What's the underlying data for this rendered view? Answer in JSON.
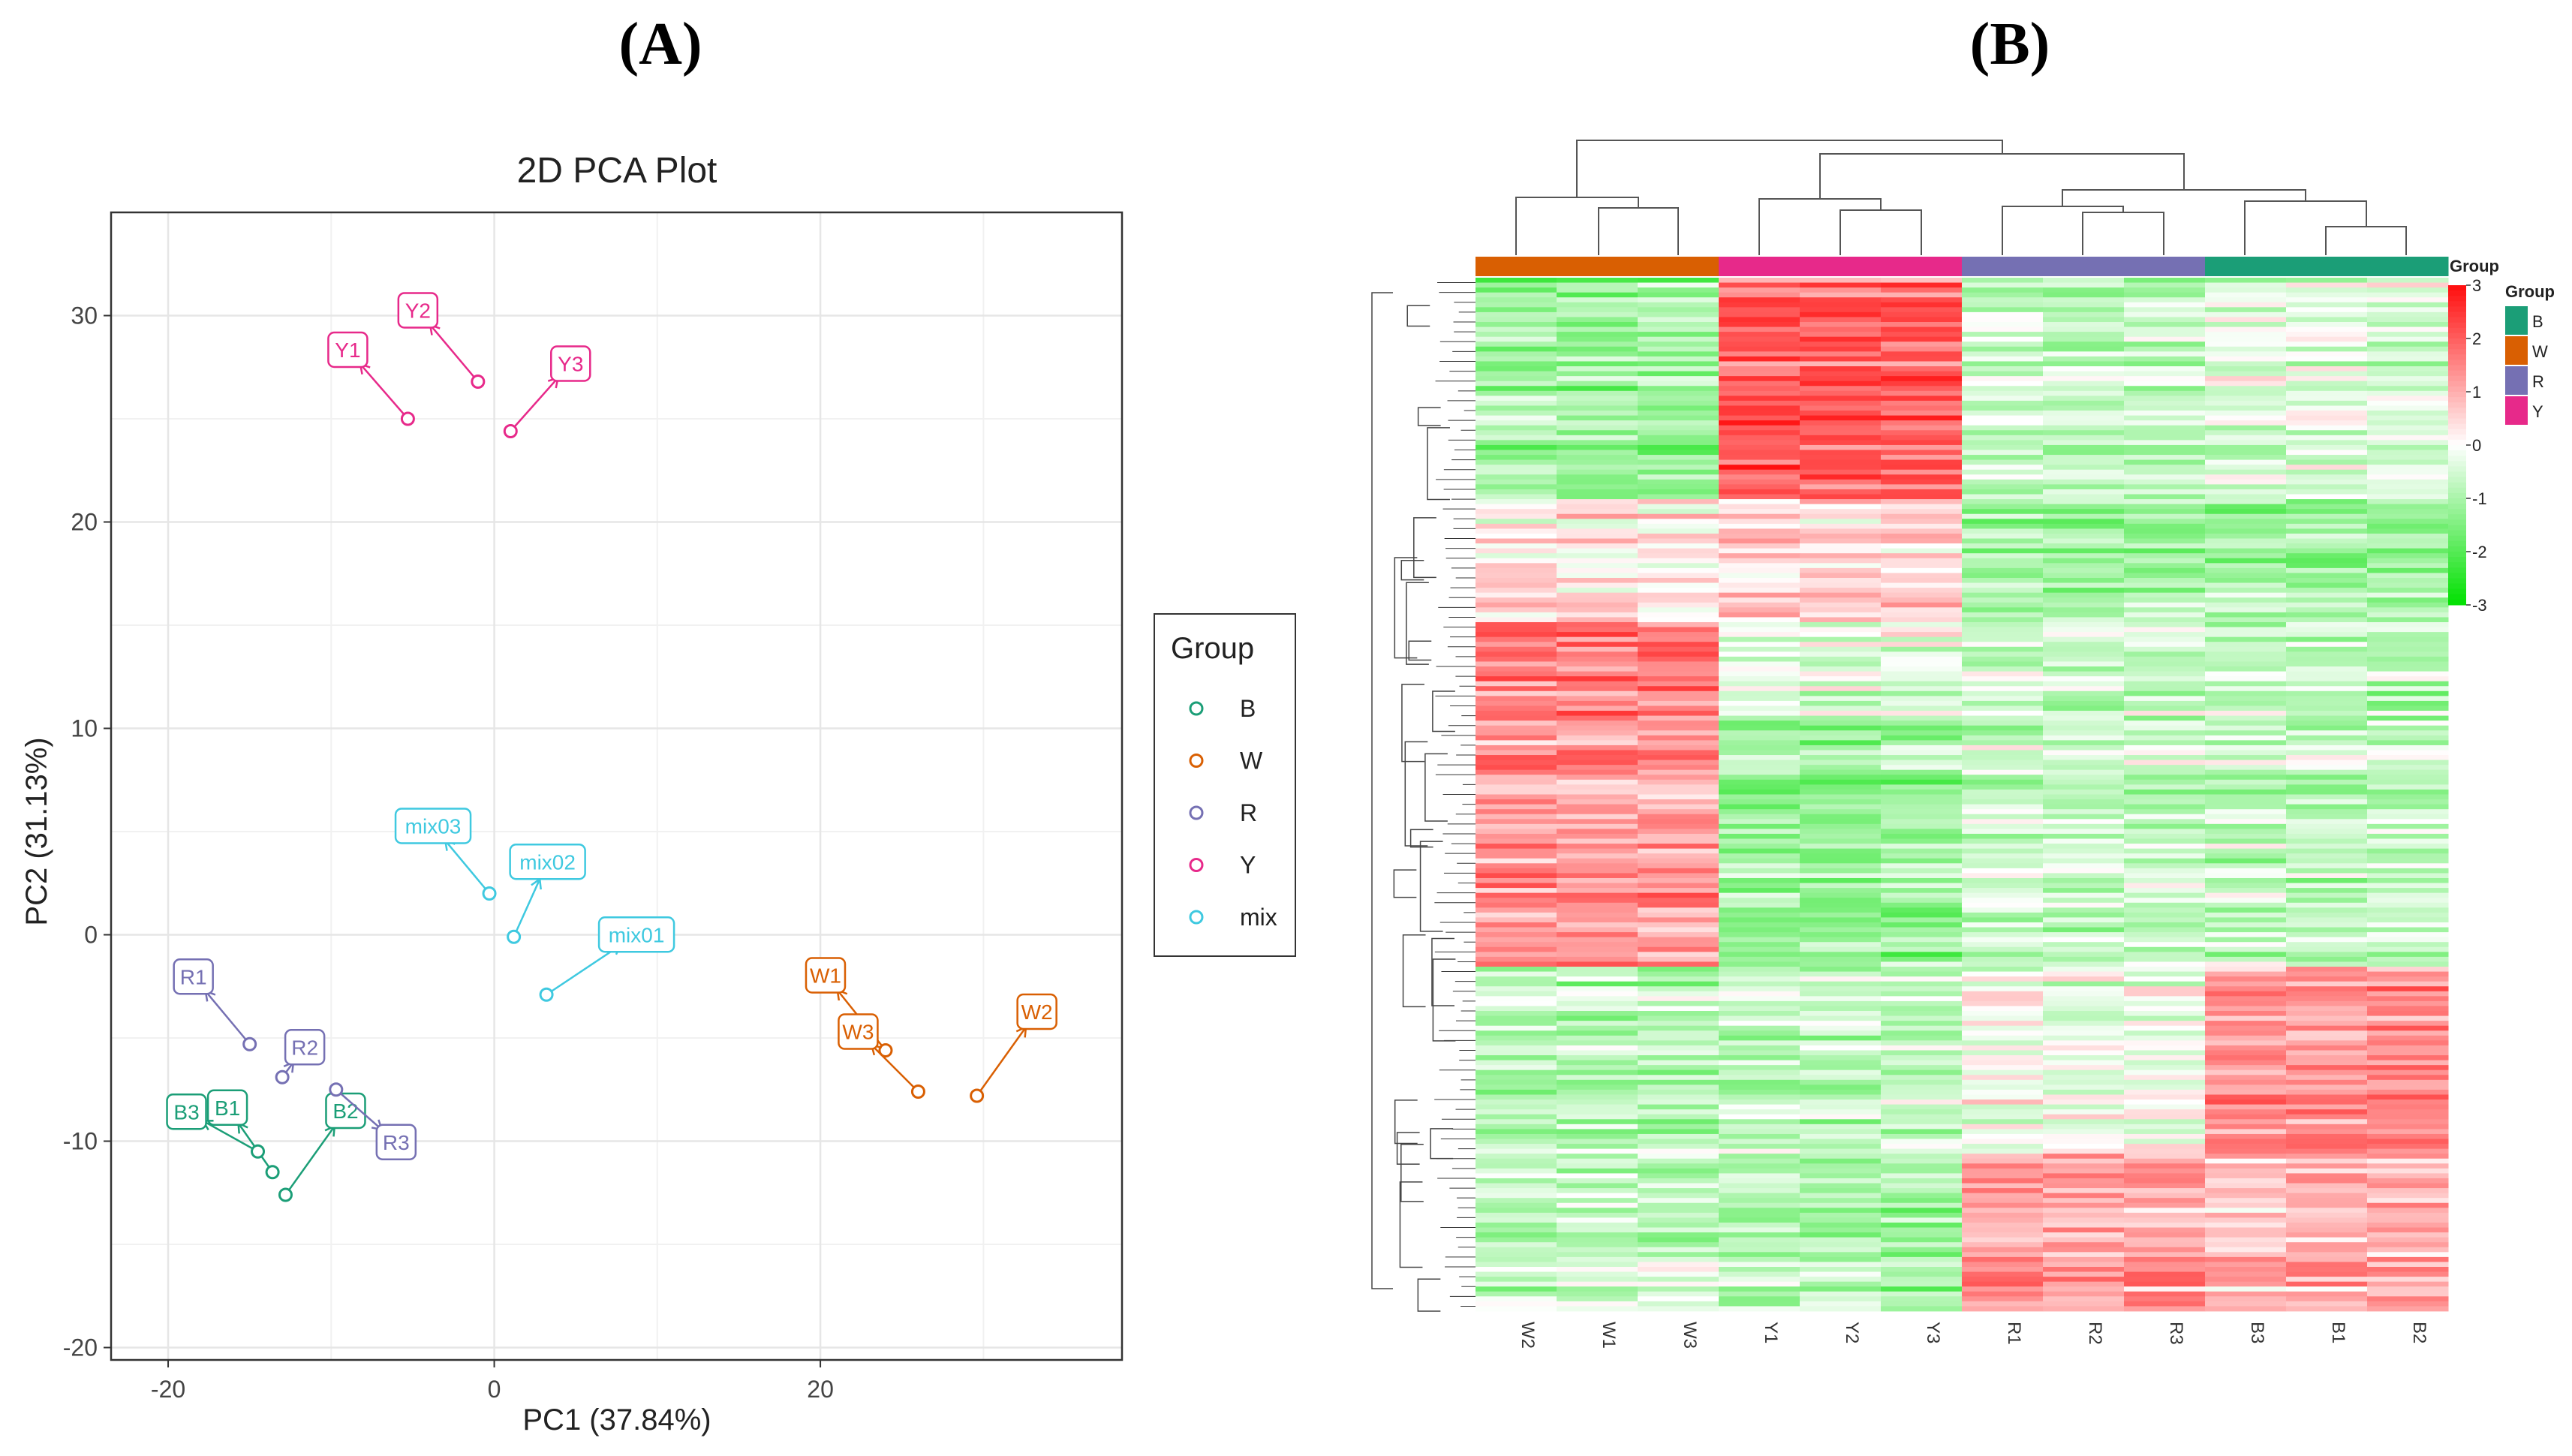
{
  "panels": {
    "a": "(A)",
    "b": "(B)"
  },
  "chart_data": [
    {
      "type": "scatter",
      "title": "2D PCA Plot",
      "xlabel": "PC1 (37.84%)",
      "ylabel": "PC2 (31.13%)",
      "xlim": [
        -23.5,
        38.5
      ],
      "ylim": [
        -20.6,
        35
      ],
      "xticks": [
        -20,
        0,
        20
      ],
      "yticks": [
        -20,
        -10,
        0,
        10,
        20,
        30
      ],
      "grid": true,
      "legend": {
        "title": "Group",
        "position": "right"
      },
      "series": [
        {
          "name": "B",
          "color": "#1B9E77",
          "points": [
            {
              "label": "B1",
              "x": -13.6,
              "y": -11.5
            },
            {
              "label": "B2",
              "x": -12.8,
              "y": -12.6
            },
            {
              "label": "B3",
              "x": -14.5,
              "y": -10.5
            }
          ]
        },
        {
          "name": "W",
          "color": "#D95F02",
          "points": [
            {
              "label": "W1",
              "x": 24.0,
              "y": -5.6
            },
            {
              "label": "W2",
              "x": 29.6,
              "y": -7.8
            },
            {
              "label": "W3",
              "x": 26.0,
              "y": -7.6
            }
          ]
        },
        {
          "name": "R",
          "color": "#7570B3",
          "points": [
            {
              "label": "R1",
              "x": -15.0,
              "y": -5.3
            },
            {
              "label": "R2",
              "x": -13.0,
              "y": -6.9
            },
            {
              "label": "R3",
              "x": -9.7,
              "y": -7.5
            }
          ]
        },
        {
          "name": "Y",
          "color": "#E7298A",
          "points": [
            {
              "label": "Y1",
              "x": -5.3,
              "y": 25.0
            },
            {
              "label": "Y2",
              "x": -1.0,
              "y": 26.8
            },
            {
              "label": "Y3",
              "x": 1.0,
              "y": 24.4
            }
          ]
        },
        {
          "name": "mix",
          "color": "#3FC9E0",
          "points": [
            {
              "label": "mix01",
              "x": 3.2,
              "y": -2.9
            },
            {
              "label": "mix02",
              "x": 1.2,
              "y": -0.1
            },
            {
              "label": "mix03",
              "x": -0.3,
              "y": 2.0
            }
          ]
        }
      ]
    },
    {
      "type": "heatmap",
      "columns": [
        "W2",
        "W1",
        "W3",
        "Y1",
        "Y2",
        "Y3",
        "R1",
        "R2",
        "R3",
        "B3",
        "B1",
        "B2"
      ],
      "column_groups": [
        "W",
        "W",
        "W",
        "Y",
        "Y",
        "Y",
        "R",
        "R",
        "R",
        "B",
        "B",
        "B"
      ],
      "scale": {
        "min": -3,
        "max": 3,
        "ticks": [
          3,
          2,
          1,
          0,
          -1,
          -2,
          -3
        ]
      },
      "colors": {
        "low": "#00E000",
        "mid": "#FFFFFF",
        "high": "#F00000"
      },
      "annotation_title": "Group",
      "legend": {
        "title": "Group",
        "entries": [
          {
            "name": "B",
            "color": "#1B9E77"
          },
          {
            "name": "W",
            "color": "#D95F02"
          },
          {
            "name": "R",
            "color": "#7570B3"
          },
          {
            "name": "Y",
            "color": "#E7298A"
          }
        ]
      }
    }
  ]
}
